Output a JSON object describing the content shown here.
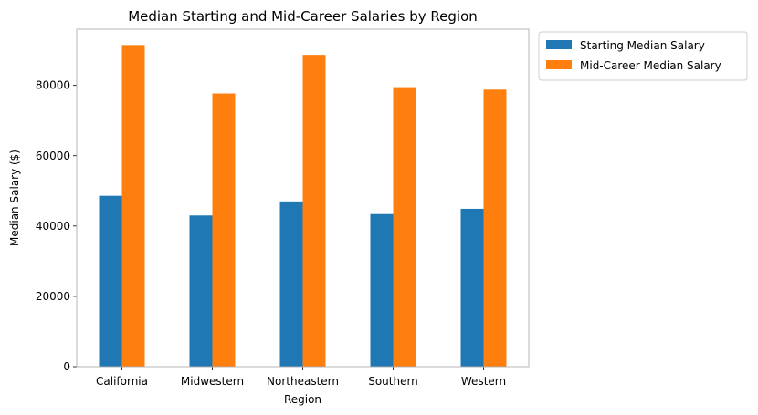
{
  "chart_data": {
    "type": "bar",
    "title": "Median Starting and Mid-Career Salaries by Region",
    "xlabel": "Region",
    "ylabel": "Median Salary ($)",
    "categories": [
      "California",
      "Midwestern",
      "Northeastern",
      "Southern",
      "Western"
    ],
    "series": [
      {
        "name": "Starting Median Salary",
        "color": "#1f77b4",
        "values": [
          48600,
          43000,
          47000,
          43400,
          44900
        ]
      },
      {
        "name": "Mid-Career Median Salary",
        "color": "#ff7f0e",
        "values": [
          91500,
          77700,
          88700,
          79500,
          78800
        ]
      }
    ],
    "ylim": [
      0,
      96000
    ],
    "yticks": [
      0,
      20000,
      40000,
      60000,
      80000
    ],
    "grid": false,
    "legend_position": "outside-top-right"
  }
}
